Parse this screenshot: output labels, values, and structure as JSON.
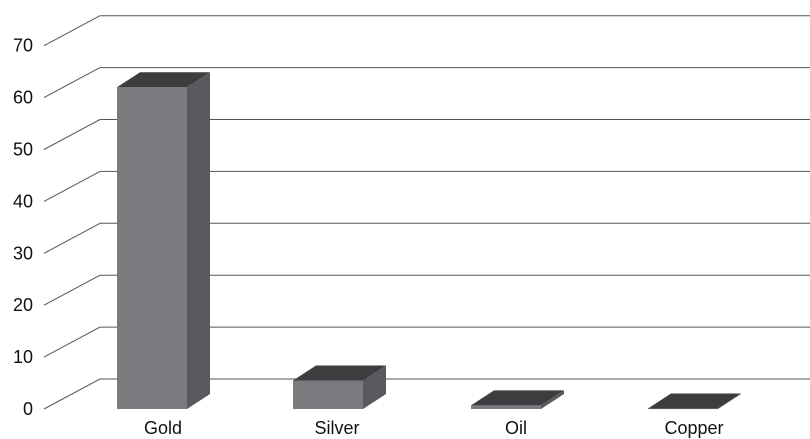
{
  "chart_data": {
    "type": "bar",
    "style": "3d-column",
    "categories": [
      "Gold",
      "Silver",
      "Oil",
      "Copper"
    ],
    "values": [
      62,
      5.5,
      0.7,
      0.1
    ],
    "ylim": [
      0,
      70
    ],
    "yticks": [
      "0",
      "10",
      "20",
      "30",
      "40",
      "50",
      "60",
      "70"
    ],
    "grid": true,
    "legend": "none",
    "colors": {
      "bar_front": "#7b7b7f",
      "bar_side": "#5a5a5e",
      "bar_top": "#3d3d40",
      "grid": "#555555"
    }
  }
}
